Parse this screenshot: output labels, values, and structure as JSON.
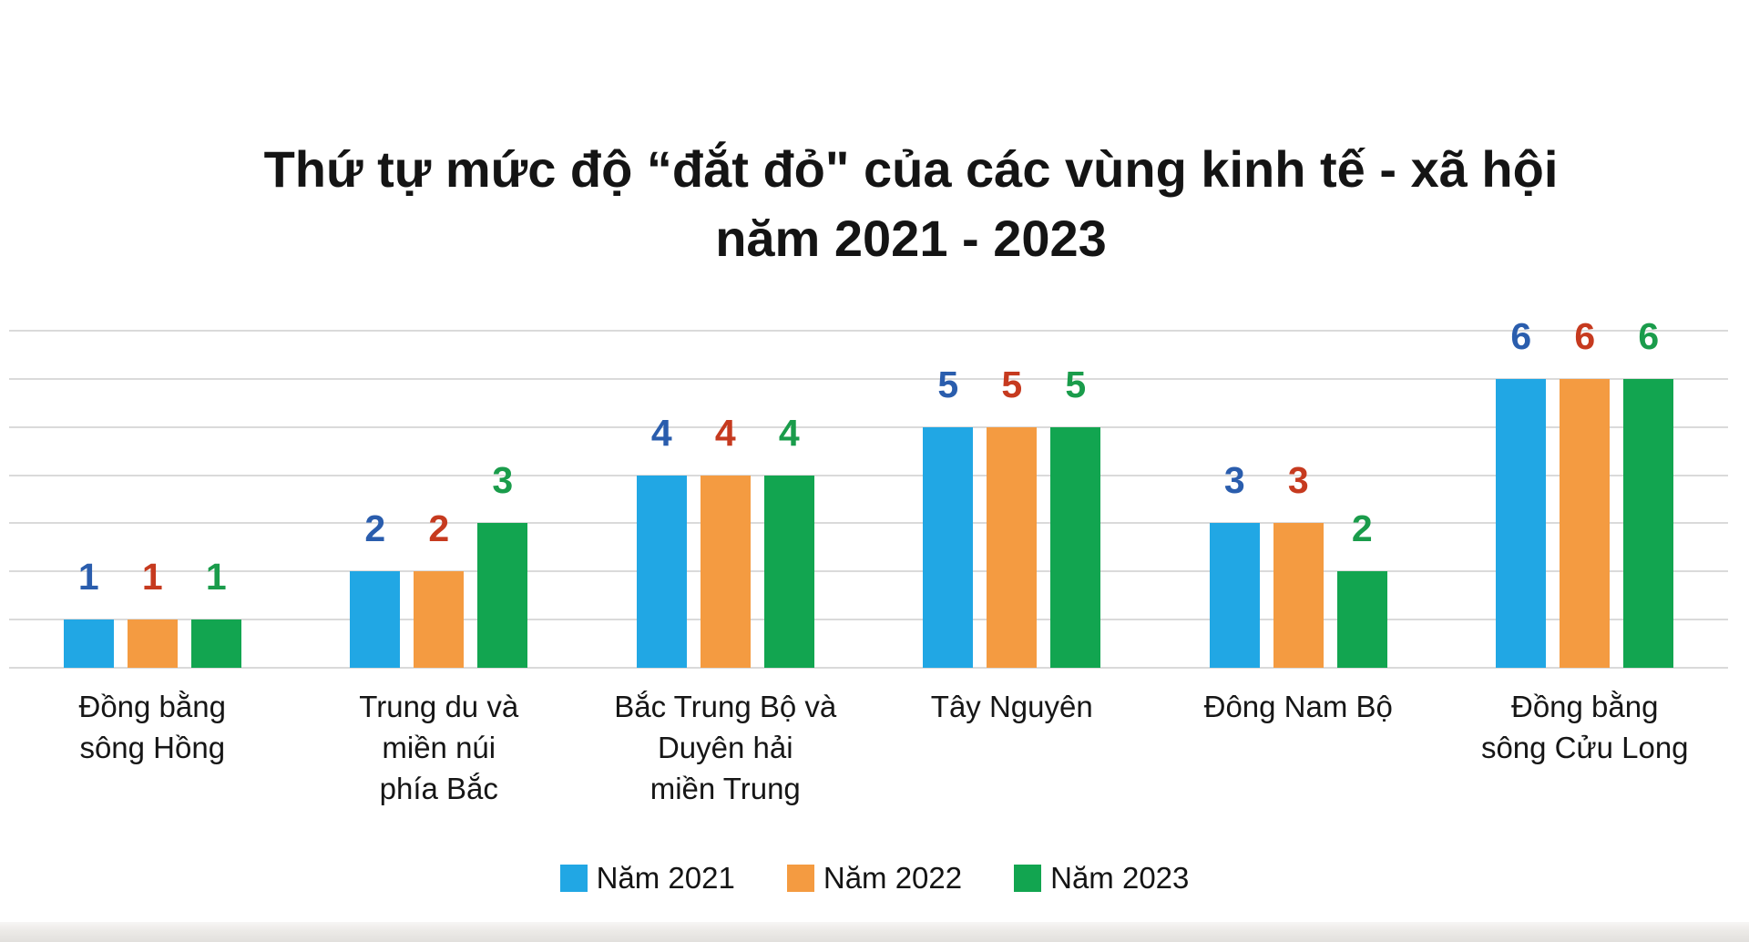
{
  "title": {
    "line1": "Thứ tự mức độ “đắt đỏ\" của các vùng kinh tế - xã hội",
    "line2": "năm 2021 - 2023"
  },
  "chart_data": {
    "type": "bar",
    "title": "Thứ tự mức độ “đắt đỏ\" của các vùng kinh tế - xã hội năm 2021 - 2023",
    "categories": [
      "Đồng bằng\nsông Hồng",
      "Trung du và\nmiền núi\nphía Bắc",
      "Bắc Trung Bộ và\nDuyên hải\nmiền Trung",
      "Tây Nguyên",
      "Đông Nam Bộ",
      "Đồng bằng\nsông Cửu Long"
    ],
    "series": [
      {
        "name": "Năm 2021",
        "color": "#21A7E4",
        "label_color": "#2A5DAD",
        "values": [
          1,
          2,
          4,
          5,
          3,
          6
        ]
      },
      {
        "name": "Năm 2022",
        "color": "#F49B41",
        "label_color": "#C63A1F",
        "values": [
          1,
          2,
          4,
          5,
          3,
          6
        ]
      },
      {
        "name": "Năm 2023",
        "color": "#12A550",
        "label_color": "#1A9C4B",
        "values": [
          1,
          3,
          4,
          5,
          2,
          6
        ]
      }
    ],
    "ylabel": "",
    "xlabel": "",
    "ylim": [
      0,
      7
    ],
    "grid": true,
    "value_labels_visible": true,
    "legend_position": "bottom",
    "colors": {
      "gridline": "#dadada",
      "category_label": "#161616",
      "title_text": "#141414",
      "legend_text": "#141414",
      "bottom_strip": "#e2e0dd"
    }
  }
}
